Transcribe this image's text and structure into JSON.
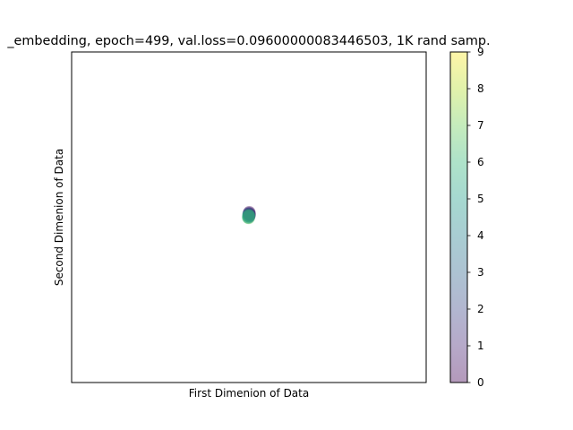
{
  "chart_data": {
    "type": "scatter",
    "title": "_embedding, epoch=499, val.loss=0.09600000083446503, 1K rand samp.",
    "xlabel": "First Dimenion of Data",
    "ylabel": "Second Dimenion of Data",
    "xlim": [
      -1,
      1
    ],
    "ylim": [
      -1,
      1
    ],
    "xticks_shown": false,
    "yticks_shown": false,
    "grid": false,
    "marker_alpha": 0.4,
    "colorbar": {
      "colormap": "viridis",
      "alpha": 0.4,
      "range": [
        0,
        9
      ],
      "ticks": [
        "0",
        "1",
        "2",
        "3",
        "4",
        "5",
        "6",
        "7",
        "8",
        "9"
      ]
    },
    "points": [
      {
        "x": 0.0,
        "y": 0.02,
        "c": 1
      },
      {
        "x": 0.002,
        "y": 0.03,
        "c": 0
      },
      {
        "x": 0.001,
        "y": 0.025,
        "c": 2
      },
      {
        "x": -0.002,
        "y": 0.018,
        "c": 3
      },
      {
        "x": 0.003,
        "y": 0.022,
        "c": 1
      },
      {
        "x": 0.0,
        "y": 0.012,
        "c": 4
      },
      {
        "x": -0.003,
        "y": 0.008,
        "c": 5
      },
      {
        "x": 0.002,
        "y": 0.01,
        "c": 6
      },
      {
        "x": -0.004,
        "y": -0.002,
        "c": 6
      },
      {
        "x": -0.001,
        "y": -0.004,
        "c": 7
      },
      {
        "x": 0.001,
        "y": 0.005,
        "c": 2
      },
      {
        "x": 0.004,
        "y": 0.015,
        "c": 0
      },
      {
        "x": -0.002,
        "y": 0.0,
        "c": 5
      },
      {
        "x": 0.0,
        "y": 0.007,
        "c": 6
      },
      {
        "x": 0.001,
        "y": 0.016,
        "c": 3
      },
      {
        "x": -0.001,
        "y": 0.01,
        "c": 6
      }
    ]
  }
}
